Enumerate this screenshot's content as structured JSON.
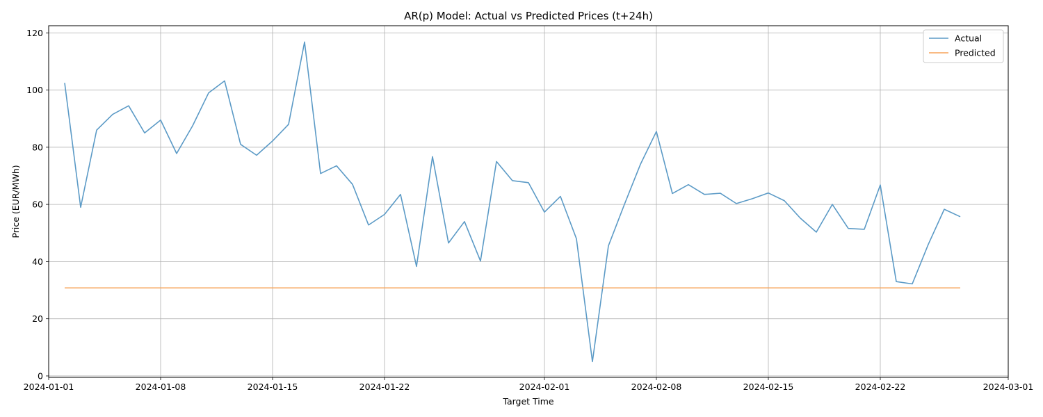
{
  "chart_data": {
    "type": "line",
    "title": "AR(p) Model: Actual vs Predicted Prices (t+24h)",
    "xlabel": "Target Time",
    "ylabel": "Price (EUR/MWh)",
    "grid": true,
    "legend_position": "top-right",
    "xlim": [
      "2024-01-01",
      "2024-03-01"
    ],
    "ylim": [
      -0.5,
      122.5
    ],
    "x_ticks": [
      "2024-01-01",
      "2024-01-08",
      "2024-01-15",
      "2024-01-22",
      "2024-02-01",
      "2024-02-08",
      "2024-02-15",
      "2024-02-22",
      "2024-03-01"
    ],
    "y_ticks": [
      0,
      20,
      40,
      60,
      80,
      100,
      120
    ],
    "x": [
      "2024-01-02",
      "2024-01-03",
      "2024-01-04",
      "2024-01-05",
      "2024-01-06",
      "2024-01-07",
      "2024-01-08",
      "2024-01-09",
      "2024-01-10",
      "2024-01-11",
      "2024-01-12",
      "2024-01-13",
      "2024-01-14",
      "2024-01-15",
      "2024-01-16",
      "2024-01-17",
      "2024-01-18",
      "2024-01-19",
      "2024-01-20",
      "2024-01-21",
      "2024-01-22",
      "2024-01-23",
      "2024-01-24",
      "2024-01-25",
      "2024-01-26",
      "2024-01-27",
      "2024-01-28",
      "2024-01-29",
      "2024-01-30",
      "2024-01-31",
      "2024-02-01",
      "2024-02-02",
      "2024-02-03",
      "2024-02-04",
      "2024-02-05",
      "2024-02-06",
      "2024-02-07",
      "2024-02-08",
      "2024-02-09",
      "2024-02-10",
      "2024-02-11",
      "2024-02-12",
      "2024-02-13",
      "2024-02-14",
      "2024-02-15",
      "2024-02-16",
      "2024-02-17",
      "2024-02-18",
      "2024-02-19",
      "2024-02-20",
      "2024-02-21",
      "2024-02-22",
      "2024-02-23",
      "2024-02-24",
      "2024-02-25",
      "2024-02-26",
      "2024-02-27"
    ],
    "series": [
      {
        "name": "Actual",
        "color": "#5b9ac6",
        "values": [
          102.5,
          59.0,
          86.0,
          91.5,
          94.5,
          85.0,
          89.5,
          77.8,
          87.5,
          99.0,
          103.2,
          81.0,
          77.2,
          82.2,
          88.0,
          116.8,
          70.8,
          73.5,
          67.0,
          52.8,
          56.5,
          63.5,
          38.3,
          76.7,
          46.5,
          54.0,
          40.2,
          75.0,
          68.3,
          67.6,
          57.3,
          62.8,
          48.0,
          5.0,
          45.5,
          60.0,
          74.0,
          85.5,
          63.8,
          66.9,
          63.5,
          63.9,
          60.3,
          62.0,
          64.0,
          61.3,
          55.2,
          50.3,
          60.0,
          51.6,
          51.3,
          66.8,
          33.0,
          32.2,
          46.0,
          58.3,
          55.7
        ]
      },
      {
        "name": "Predicted",
        "color": "#f7a45a",
        "values": [
          30.8,
          30.8,
          30.8,
          30.8,
          30.8,
          30.8,
          30.8,
          30.8,
          30.8,
          30.8,
          30.8,
          30.8,
          30.8,
          30.8,
          30.8,
          30.8,
          30.8,
          30.8,
          30.8,
          30.8,
          30.8,
          30.8,
          30.8,
          30.8,
          30.8,
          30.8,
          30.8,
          30.8,
          30.8,
          30.8,
          30.8,
          30.8,
          30.8,
          30.8,
          30.8,
          30.8,
          30.8,
          30.8,
          30.8,
          30.8,
          30.8,
          30.8,
          30.8,
          30.8,
          30.8,
          30.8,
          30.8,
          30.8,
          30.8,
          30.8,
          30.8,
          30.8,
          30.8,
          30.8,
          30.8,
          30.8,
          30.8
        ]
      }
    ]
  }
}
